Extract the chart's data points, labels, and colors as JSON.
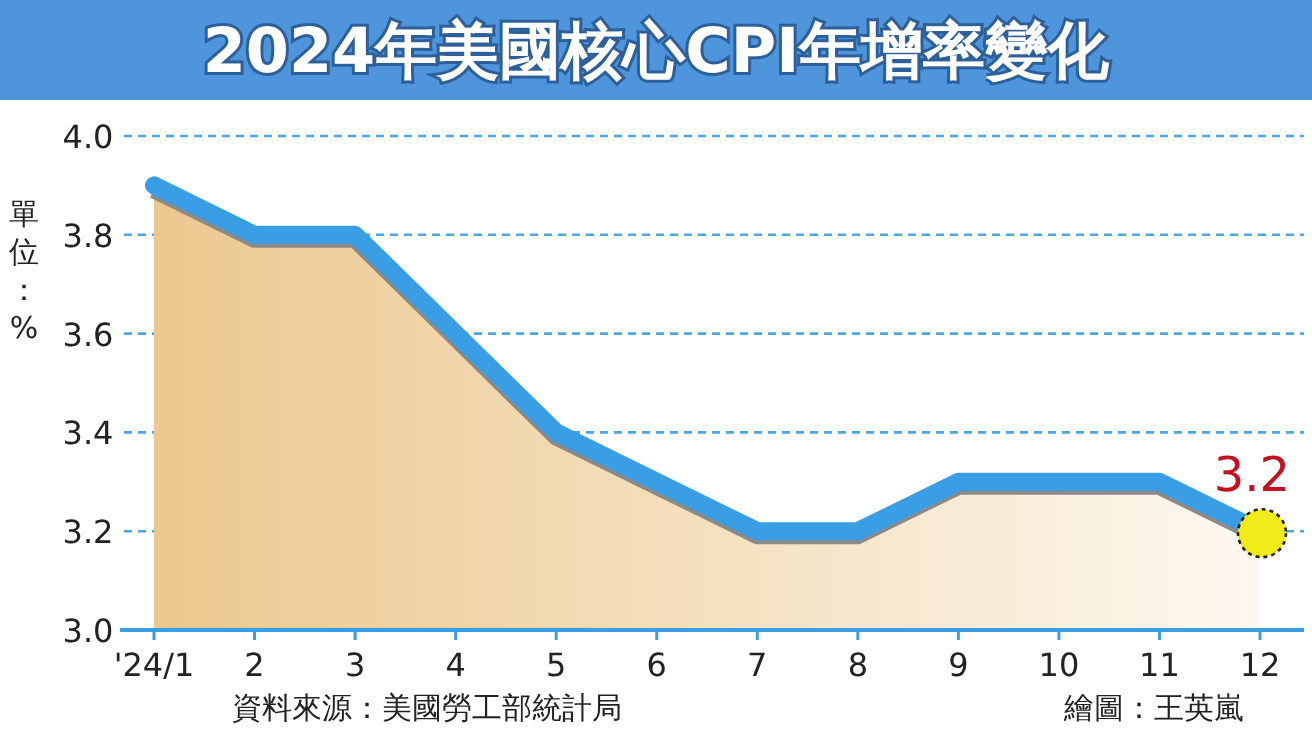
{
  "chart_data": {
    "type": "area",
    "title": "2024年美國核心CPI年增率變化",
    "ylabel": "單位：%",
    "categories": [
      "'24/1",
      "2",
      "3",
      "4",
      "5",
      "6",
      "7",
      "8",
      "9",
      "10",
      "11",
      "12"
    ],
    "series": [
      {
        "color": "#3a9ee4",
        "values": [
          3.9,
          3.8,
          3.8,
          3.6,
          3.4,
          3.3,
          3.2,
          3.2,
          3.3,
          3.3,
          3.3,
          3.2
        ]
      }
    ],
    "ylim": [
      3.0,
      4.0
    ],
    "yticks": [
      {
        "value": 3.0,
        "label": "3.0"
      },
      3.2,
      3.4,
      3.6,
      3.8,
      {
        "value": 4.0,
        "label": "4.0"
      }
    ],
    "grid": "y",
    "annotations": [
      {
        "text": "3.2",
        "x": "12",
        "y": 3.2
      },
      "資料來源：美國勞工部統計局",
      "繪圖：王英嵐"
    ]
  }
}
